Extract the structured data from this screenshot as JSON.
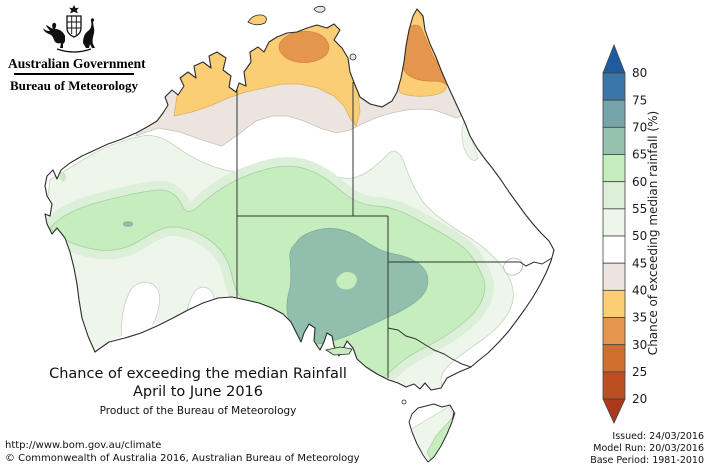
{
  "header": {
    "government": "Australian Government",
    "bureau": "Bureau of Meteorology"
  },
  "title": {
    "line1": "Chance of exceeding the median Rainfall",
    "line2": "April to June 2016",
    "line3": "Product of the Bureau of Meteorology"
  },
  "footer": {
    "url": "http://www.bom.gov.au/climate",
    "copyright": "© Commonwealth of Australia 2016, Australian Bureau of Meteorology"
  },
  "issue": {
    "issued": "Issued: 24/03/2016",
    "model_run": "Model Run: 20/03/2016",
    "base_period": "Base Period: 1981-2010"
  },
  "scale": {
    "axis_title": "Chance of exceeding median rainfall (%)",
    "boundary_labels": [
      "80",
      "75",
      "70",
      "65",
      "60",
      "55",
      "50",
      "45",
      "40",
      "35",
      "30",
      "25",
      "20"
    ],
    "above_arrow_color": "#1d5ca0",
    "below_arrow_color": "#a93b1c",
    "segments": [
      {
        "range": "75-80",
        "color": "#3b76a8"
      },
      {
        "range": "70-75",
        "color": "#76a4ab"
      },
      {
        "range": "65-70",
        "color": "#95c2af"
      },
      {
        "range": "60-65",
        "color": "#c5edbd"
      },
      {
        "range": "55-60",
        "color": "#dcefd8"
      },
      {
        "range": "50-55",
        "color": "#eef5eb"
      },
      {
        "range": "45-50",
        "color": "#ffffff"
      },
      {
        "range": "40-45",
        "color": "#ebe4df"
      },
      {
        "range": "35-40",
        "color": "#fbce76"
      },
      {
        "range": "30-35",
        "color": "#e5964d"
      },
      {
        "range": "25-30",
        "color": "#d06f2f"
      },
      {
        "range": "20-25",
        "color": "#bb4e23"
      }
    ]
  },
  "map": {
    "colors": {
      "land": "#ffffff",
      "band_65_70": "#92bfad",
      "band_60_65": "#c5edbd",
      "band_55_60": "#dcefd8",
      "band_50_55": "#eef5eb",
      "band_45_50": "#ffffff",
      "band_40_45": "#ebe4df",
      "band_35_40": "#fbce76",
      "band_30_35": "#e5964d",
      "coastline": "#2b2b2b",
      "state_border": "#333333"
    }
  }
}
